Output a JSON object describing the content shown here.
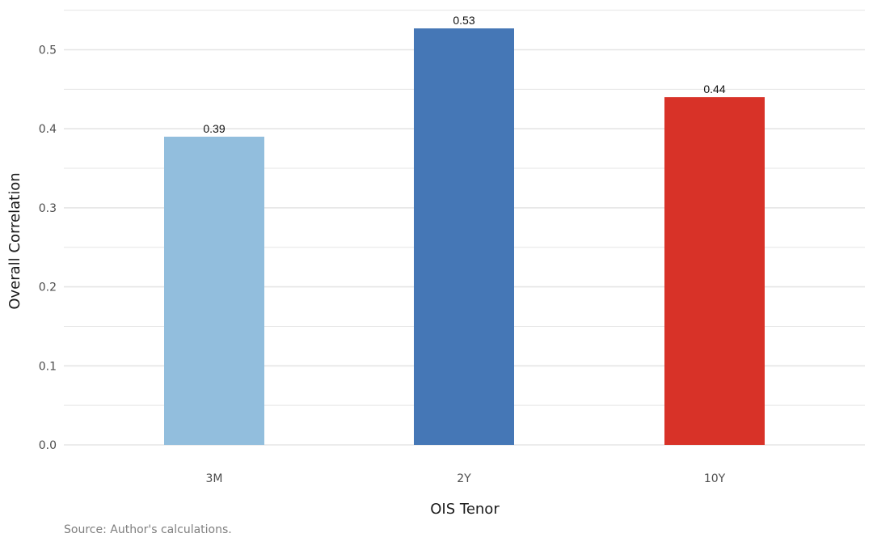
{
  "chart_data": {
    "type": "bar",
    "categories": [
      "3M",
      "2Y",
      "10Y"
    ],
    "values": [
      0.39,
      0.527,
      0.44
    ],
    "data_labels": [
      "0.39",
      "0.53",
      "0.44"
    ],
    "colors": [
      "#92bedd",
      "#4577b6",
      "#d83228"
    ],
    "xlabel": "OIS Tenor",
    "ylabel": "Overall Correlation",
    "ylim": [
      0,
      0.55
    ],
    "yticks": [
      0.0,
      0.1,
      0.2,
      0.3,
      0.4,
      0.5
    ],
    "ytick_labels": [
      "0.0",
      "0.1",
      "0.2",
      "0.3",
      "0.4",
      "0.5"
    ],
    "grid": true,
    "grid_color": "#e5e5e5"
  },
  "caption": "Source: Author's calculations."
}
